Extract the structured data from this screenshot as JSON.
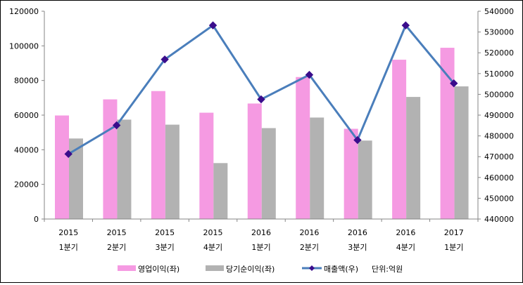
{
  "chart_data": {
    "type": "bar+line",
    "categories": [
      [
        "2015",
        "1분기"
      ],
      [
        "2015",
        "2분기"
      ],
      [
        "2015",
        "3분기"
      ],
      [
        "2015",
        "4분기"
      ],
      [
        "2016",
        "1분기"
      ],
      [
        "2016",
        "2분기"
      ],
      [
        "2016",
        "3분기"
      ],
      [
        "2016",
        "4분기"
      ],
      [
        "2017",
        "1분기"
      ]
    ],
    "series": [
      {
        "name": "영업이익(좌)",
        "type": "bar",
        "axis": "left",
        "color": "#f59ae2",
        "values": [
          59800,
          69100,
          73900,
          61400,
          66700,
          82000,
          52100,
          92000,
          98900
        ]
      },
      {
        "name": "당기순이익(좌)",
        "type": "bar",
        "axis": "left",
        "color": "#b2b2b2",
        "values": [
          46500,
          57400,
          54500,
          32300,
          52500,
          58600,
          45300,
          70500,
          76600
        ]
      },
      {
        "name": "매출액(우)",
        "type": "line",
        "axis": "right",
        "color": "#4a7ebb",
        "marker_color": "#3a0d8c",
        "values": [
          471300,
          485100,
          516800,
          533200,
          497600,
          509400,
          478000,
          533200,
          505300
        ]
      }
    ],
    "left_axis": {
      "range": [
        0,
        120000
      ],
      "ticks": [
        "0",
        "20000",
        "40000",
        "60000",
        "80000",
        "100000",
        "120000"
      ]
    },
    "right_axis": {
      "range": [
        440000,
        540000
      ],
      "ticks": [
        "440000",
        "450000",
        "460000",
        "470000",
        "480000",
        "490000",
        "500000",
        "510000",
        "520000",
        "530000",
        "540000"
      ]
    },
    "unit_note": "단위:억원",
    "legend_position": "bottom",
    "grid": false
  }
}
